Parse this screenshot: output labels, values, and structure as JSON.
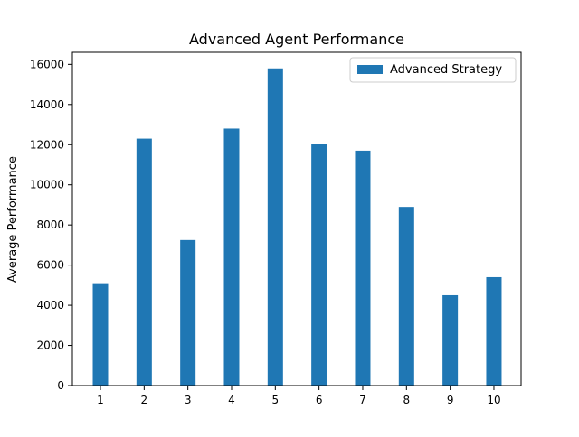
{
  "chart_data": {
    "type": "bar",
    "title": "Advanced Agent Performance",
    "xlabel": "",
    "ylabel": "Average Performance",
    "categories": [
      "1",
      "2",
      "3",
      "4",
      "5",
      "6",
      "7",
      "8",
      "9",
      "10"
    ],
    "series": [
      {
        "name": "Advanced Strategy",
        "color": "#1f77b4",
        "values": [
          5100,
          12300,
          7250,
          12800,
          15800,
          12050,
          11700,
          8900,
          4500,
          5400
        ]
      }
    ],
    "ylim": [
      0,
      16600
    ],
    "yticks": [
      0,
      2000,
      4000,
      6000,
      8000,
      10000,
      12000,
      14000,
      16000
    ],
    "legend_position": "top-right",
    "grid": false
  }
}
